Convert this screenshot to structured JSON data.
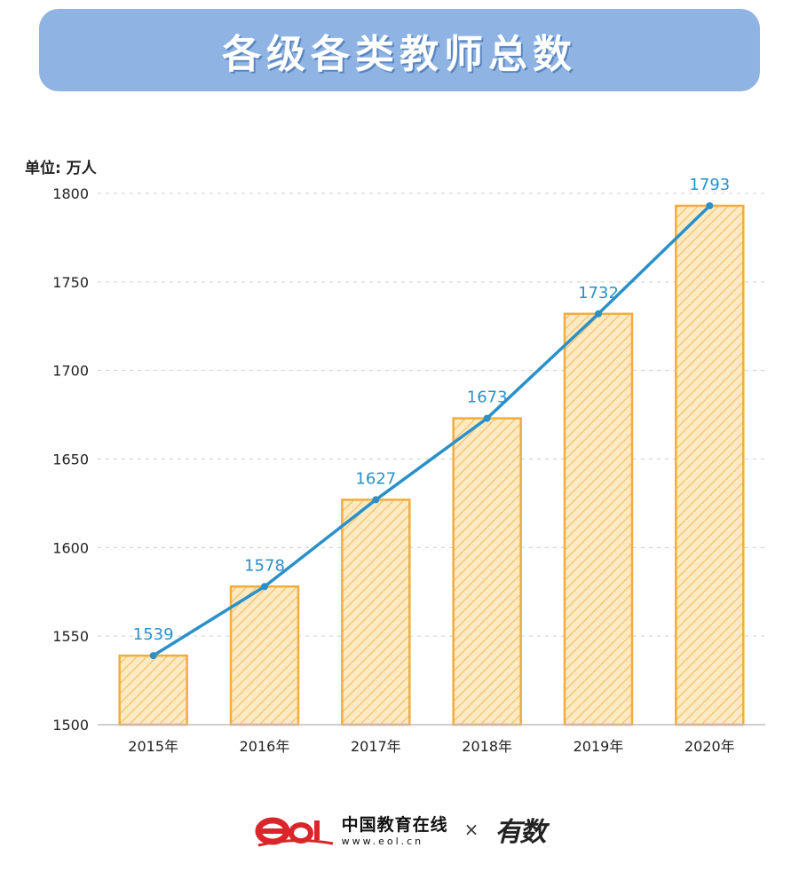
{
  "header": {
    "title": "各级各类教师总数"
  },
  "chart_data": {
    "type": "bar",
    "title": "各级各类教师总数",
    "unit_label": "单位: 万人",
    "categories": [
      "2015年",
      "2016年",
      "2017年",
      "2018年",
      "2019年",
      "2020年"
    ],
    "values": [
      1539,
      1578,
      1627,
      1673,
      1732,
      1793
    ],
    "line_overlay": true,
    "ylim": [
      1500,
      1800
    ],
    "yticks": [
      "1500",
      "1550",
      "1600",
      "1650",
      "1700",
      "1750",
      "1800"
    ],
    "grid": true,
    "colors": {
      "bar_fill": "#fbe3b3",
      "bar_stroke": "#f2ad3c",
      "line": "#2a90c8",
      "label": "#2a90c8"
    }
  },
  "footer": {
    "brand_name": "中国教育在线",
    "brand_url": "www.eol.cn",
    "separator": "×",
    "partner": "有数"
  }
}
